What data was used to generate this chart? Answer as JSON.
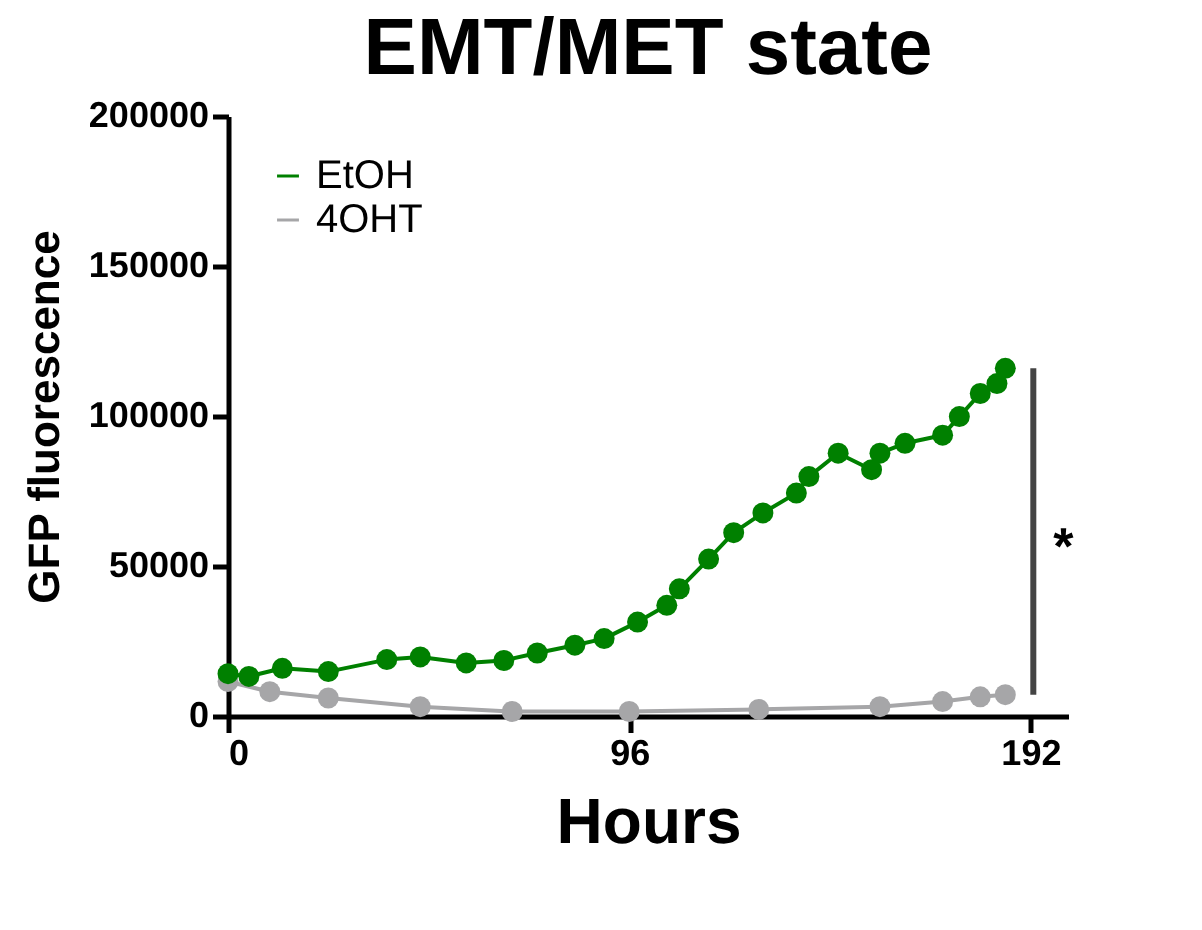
{
  "chart_data": {
    "type": "line",
    "title": "EMT/MET state",
    "xlabel": "Hours",
    "ylabel": "GFP fluorescence",
    "xlim": [
      0,
      201
    ],
    "xticks": [
      0,
      96,
      192
    ],
    "ylim": [
      0,
      200000
    ],
    "yticks": [
      0,
      50000,
      100000,
      150000,
      200000
    ],
    "grid": false,
    "legend": "top left",
    "marker": "circle",
    "line_style": "solid",
    "annotations": [
      "*"
    ],
    "series": [
      {
        "name": "EtOH",
        "color": "#008000",
        "x": [
          0,
          5,
          13,
          24,
          38,
          46,
          57,
          66,
          74,
          83,
          90,
          98,
          105,
          108,
          115,
          121,
          128,
          136,
          139,
          146,
          154,
          156,
          162,
          171,
          175,
          180,
          184,
          186
        ],
        "values": [
          14100,
          13200,
          15900,
          14800,
          18800,
          19700,
          17700,
          18500,
          21000,
          23600,
          25800,
          31300,
          36900,
          42400,
          52300,
          61100,
          67700,
          74300,
          79800,
          87600,
          82100,
          87600,
          90900,
          93600,
          99800,
          107500,
          110800,
          115900
        ]
      },
      {
        "name": "4OHT",
        "color": "#a6a6a8",
        "x": [
          0,
          10,
          24,
          46,
          68,
          96,
          127,
          156,
          171,
          180,
          186
        ],
        "values": [
          11500,
          8100,
          6000,
          3100,
          1500,
          1500,
          2200,
          3100,
          4800,
          6400,
          7100
        ]
      }
    ]
  }
}
